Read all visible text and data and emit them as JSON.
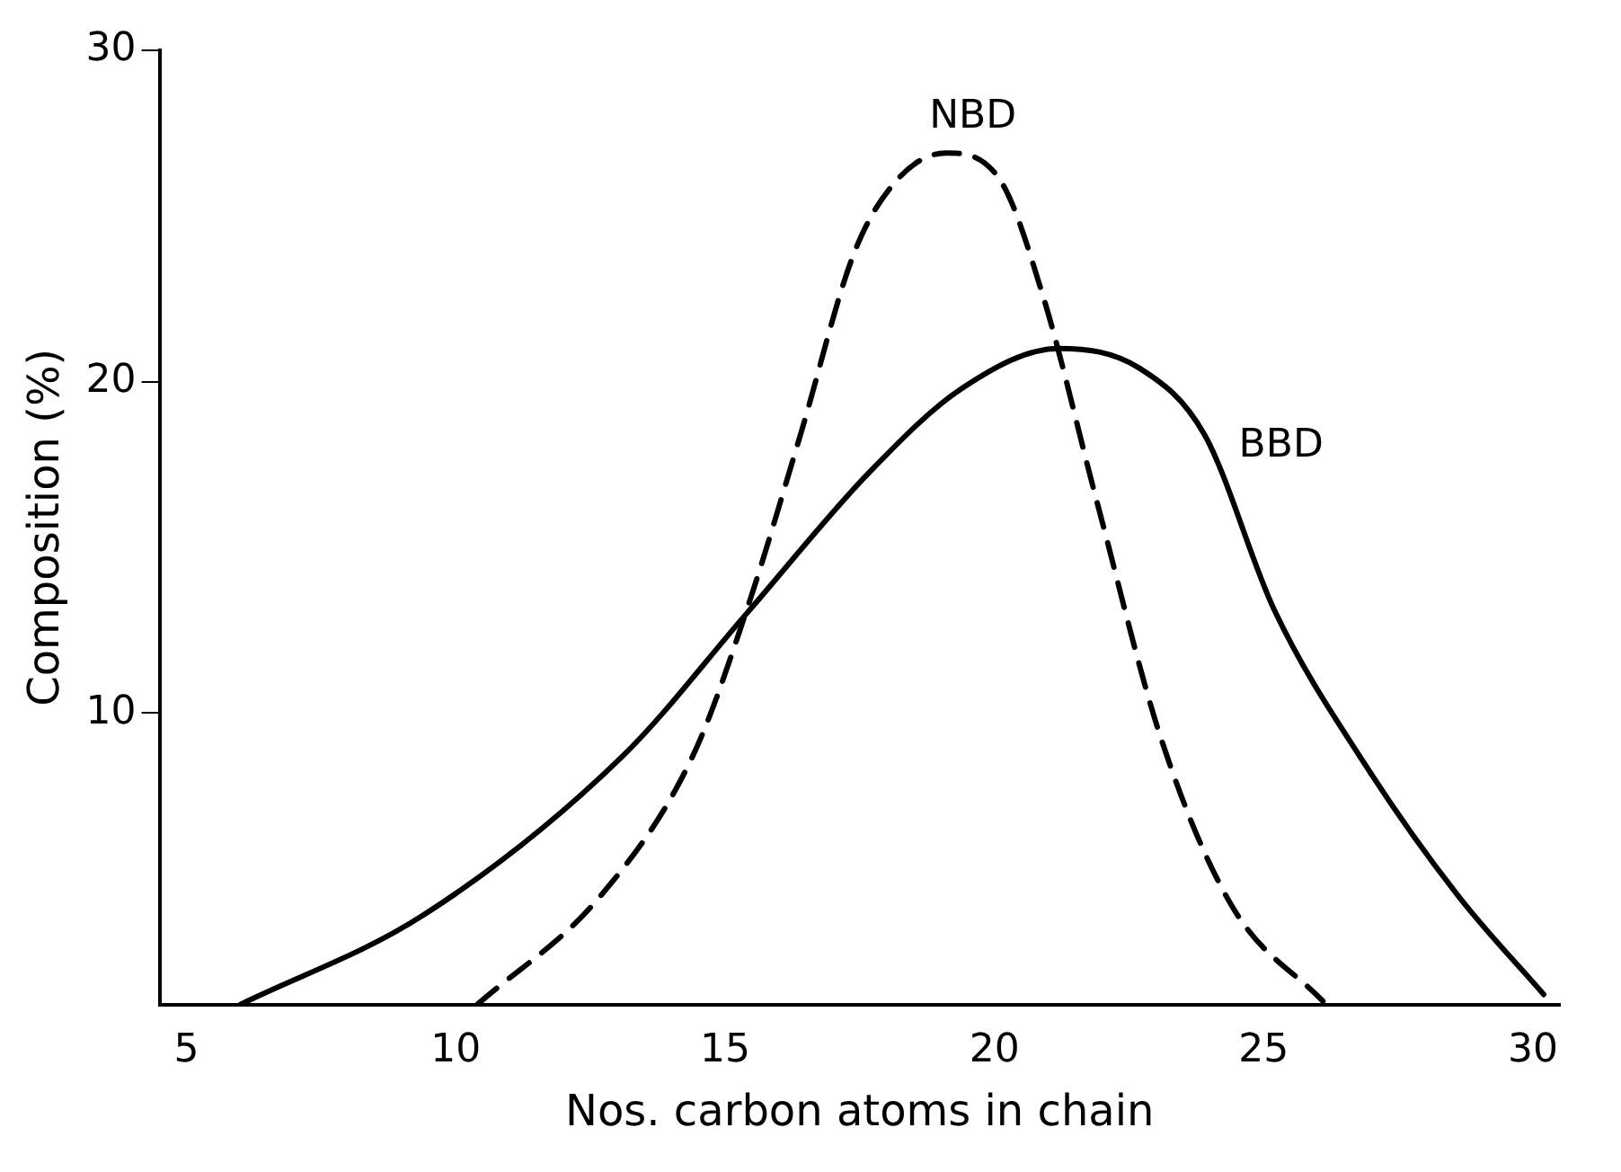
{
  "chart_data": {
    "type": "line",
    "xlabel": "Nos. carbon atoms in chain",
    "ylabel": "Composition (%)",
    "xlim": [
      4.5,
      30.5
    ],
    "ylim": [
      1.2,
      30
    ],
    "xticks": [
      5,
      10,
      15,
      20,
      25,
      30
    ],
    "yticks": [
      10,
      20,
      30
    ],
    "grid": false,
    "legend": false,
    "marker": "none",
    "series": [
      {
        "name": "NBD",
        "color": "#000000",
        "line_style": "dashed",
        "x": [
          10.4,
          12.7,
          14.4,
          15.4,
          16.4,
          17.4,
          18.2,
          19.1,
          20.1,
          20.9,
          21.9,
          23.1,
          24.4,
          26.1
        ],
        "values": [
          1.2,
          4.5,
          8.7,
          13.1,
          18.4,
          23.9,
          26.1,
          26.9,
          26.1,
          22.6,
          16.4,
          9.2,
          4.2,
          1.3
        ]
      },
      {
        "name": "BBD",
        "color": "#000000",
        "line_style": "solid",
        "x": [
          6,
          9.4,
          13.1,
          15.4,
          17.7,
          19.4,
          21.2,
          22.7,
          23.9,
          25.2,
          26.9,
          28.6,
          30.2
        ],
        "values": [
          1.2,
          3.9,
          8.7,
          13,
          17.3,
          19.8,
          21,
          20.4,
          18.4,
          13.1,
          8.4,
          4.5,
          1.5
        ]
      }
    ]
  }
}
